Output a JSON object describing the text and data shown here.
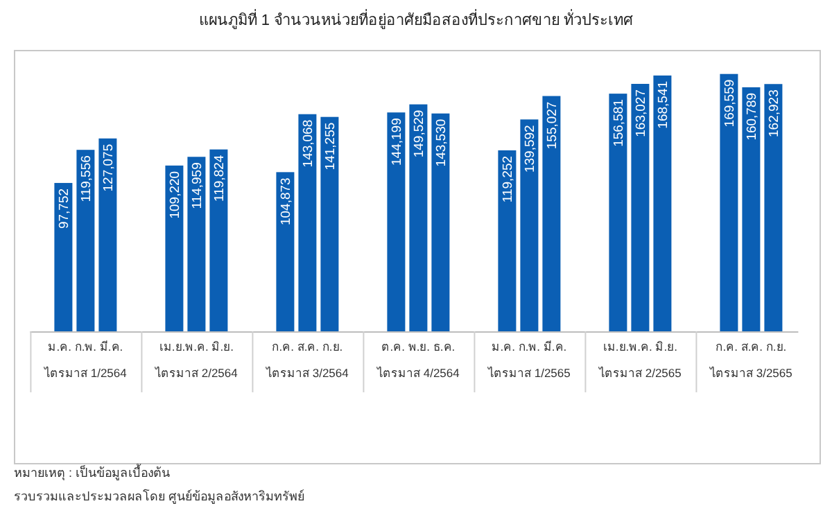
{
  "chart_data": {
    "type": "bar",
    "title": "แผนภูมิที่ 1 จำนวนหน่วยที่อยู่อาศัยมือสองที่ประกาศขาย ทั่วประเทศ",
    "categories": [
      "ม.ค. ก.พ. มี.ค.\nไตรมาส 1/2564",
      "เม.ย.พ.ค. มิ.ย.\nไตรมาส 2/2564",
      "ก.ค. ส.ค. ก.ย.\nไตรมาส 3/2564",
      "ต.ค. พ.ย. ธ.ค.\nไตรมาส 4/2564",
      "ม.ค. ก.พ. มี.ค.\nไตรมาส 1/2565",
      "เม.ย.พ.ค. มิ.ย.\nไตรมาส 2/2565",
      "ก.ค. ส.ค. ก.ย.\nไตรมาส 3/2565"
    ],
    "series": [
      {
        "color": "#0b5fb4",
        "values": [
          97752,
          109220,
          104873,
          144199,
          119252,
          156581,
          169559
        ],
        "value_labels": [
          "97,752",
          "109,220",
          "104,873",
          "144,199",
          "119,252",
          "156,581",
          "169,559"
        ]
      },
      {
        "color": "#0b5fb4",
        "values": [
          119556,
          114959,
          143068,
          149529,
          139592,
          163027,
          160789
        ],
        "value_labels": [
          "119,556",
          "114,959",
          "143,068",
          "149,529",
          "139,592",
          "163,027",
          "160,789"
        ]
      },
      {
        "color": "#0b5fb4",
        "values": [
          127075,
          119824,
          141255,
          143530,
          155027,
          168541,
          162923
        ],
        "value_labels": [
          "127,075",
          "119,824",
          "141,255",
          "143,530",
          "155,027",
          "168,541",
          "162,923"
        ]
      }
    ],
    "annotations": [
      "หมายเหตุ : เป็นข้อมูลเบื้องต้น",
      "รวบรวมและประมวลผลโดย ศูนย์ข้อมูลอสังหาริมทรัพย์"
    ]
  }
}
